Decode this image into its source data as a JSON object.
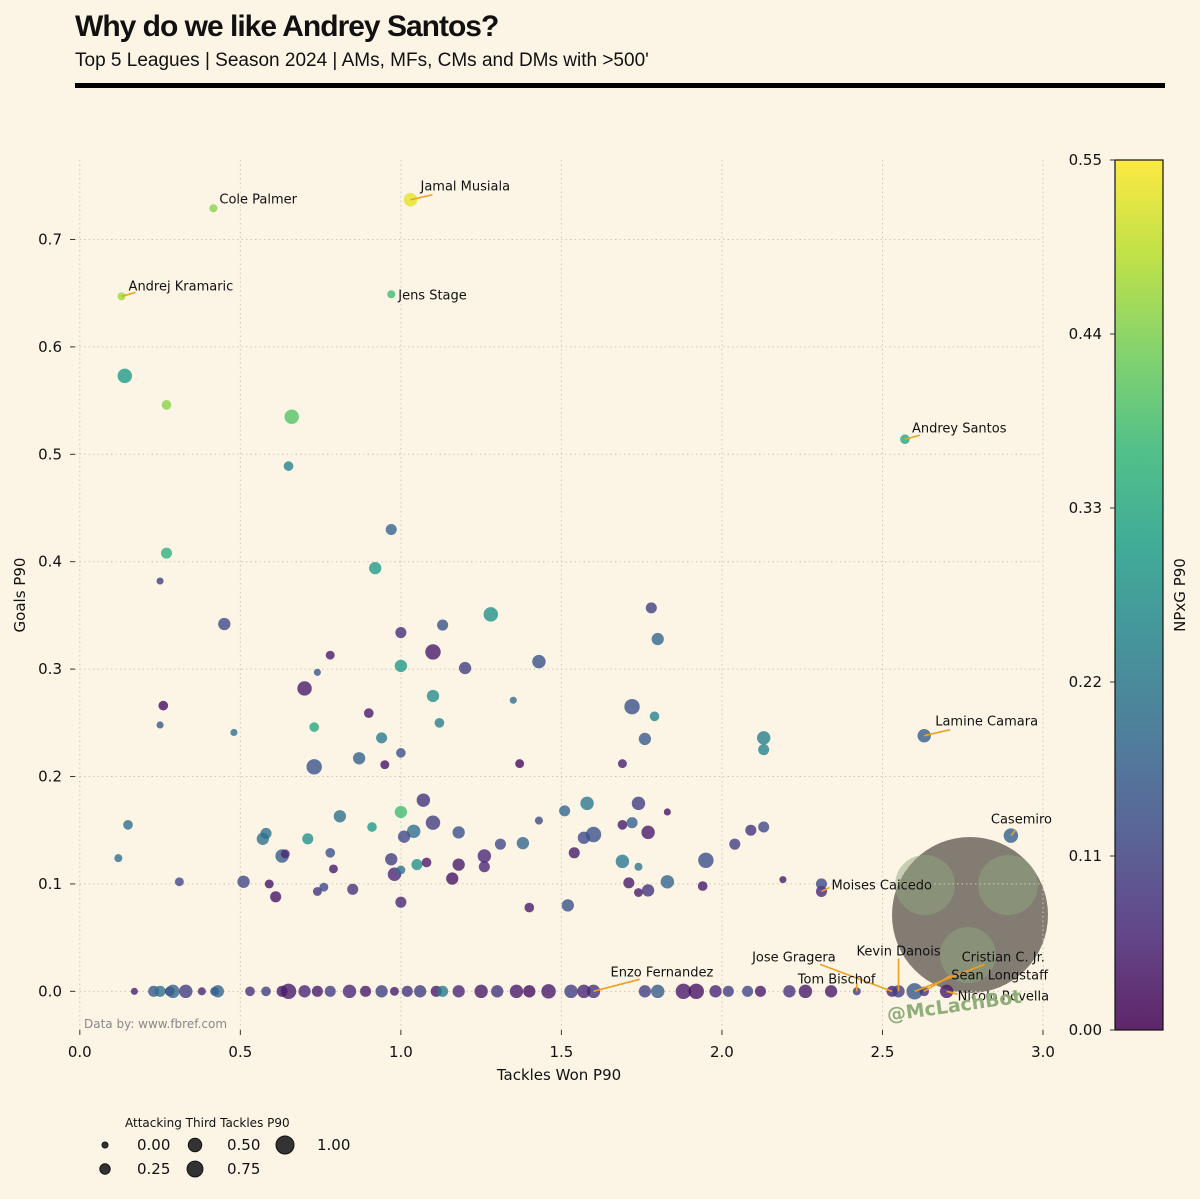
{
  "header": {
    "title": "Why do we like Andrey Santos?",
    "subtitle": "Top 5 Leagues | Season 2024 | AMs, MFs, CMs and DMs with >500'"
  },
  "chart_data": {
    "type": "scatter",
    "x_label": "Tackles Won P90",
    "y_label": "Goals P90",
    "xlim": [
      -0.015,
      3.0
    ],
    "ylim": [
      -0.036,
      0.774
    ],
    "xticks": [
      {
        "value": 0,
        "label": "0.0"
      },
      {
        "value": 0.5,
        "label": "0.5"
      },
      {
        "value": 1,
        "label": "1.0"
      },
      {
        "value": 1.5,
        "label": "1.5"
      },
      {
        "value": 2,
        "label": "2.0"
      },
      {
        "value": 2.5,
        "label": "2.5"
      },
      {
        "value": 3,
        "label": "3.0"
      }
    ],
    "yticks": [
      {
        "value": 0,
        "label": "0.0"
      },
      {
        "value": 0.1,
        "label": "0.1"
      },
      {
        "value": 0.2,
        "label": "0.2"
      },
      {
        "value": 0.3,
        "label": "0.3"
      },
      {
        "value": 0.4,
        "label": "0.4"
      },
      {
        "value": 0.5,
        "label": "0.5"
      },
      {
        "value": 0.6,
        "label": "0.6"
      },
      {
        "value": 0.7,
        "label": "0.7"
      }
    ],
    "grid": true,
    "colormap": "viridis",
    "color_label": "NPxG P90",
    "clim": [
      0,
      0.55
    ],
    "cticks": [
      {
        "value": 0,
        "label": "0.00"
      },
      {
        "value": 0.11,
        "label": "0.11"
      },
      {
        "value": 0.22,
        "label": "0.22"
      },
      {
        "value": 0.33,
        "label": "0.33"
      },
      {
        "value": 0.44,
        "label": "0.44"
      },
      {
        "value": 0.55,
        "label": "0.55"
      }
    ],
    "size_label": "Attacking Third Tackles P90",
    "size_ticks": [
      {
        "value": 0,
        "label": "0.00"
      },
      {
        "value": 0.25,
        "label": "0.25"
      },
      {
        "value": 0.5,
        "label": "0.50"
      },
      {
        "value": 0.75,
        "label": "0.75"
      },
      {
        "value": 1,
        "label": "1.00"
      }
    ],
    "source": "Data by: www.fbref.com",
    "watermark": "@McLachBot",
    "annotation_color": "#f0a020",
    "points": [
      {
        "x": 0.416,
        "y": 0.729,
        "size": 0.1,
        "npxg": 0.45,
        "label": "Cole Palmer"
      },
      {
        "x": 1.03,
        "y": 0.737,
        "size": 0.5,
        "npxg": 0.53,
        "label": "Jamal Musiala"
      },
      {
        "x": 0.13,
        "y": 0.647,
        "size": 0.1,
        "npxg": 0.47,
        "label": "Andrej Kramaric"
      },
      {
        "x": 0.97,
        "y": 0.649,
        "size": 0.1,
        "npxg": 0.38,
        "label": "Jens Stage"
      },
      {
        "x": 2.57,
        "y": 0.514,
        "size": 0.2,
        "npxg": 0.33,
        "label": "Andrey Santos"
      },
      {
        "x": 2.63,
        "y": 0.238,
        "size": 0.5,
        "npxg": 0.16,
        "label": "Lamine Camara"
      },
      {
        "x": 2.9,
        "y": 0.145,
        "size": 0.6,
        "npxg": 0.17,
        "label": "Casemiro"
      },
      {
        "x": 2.31,
        "y": 0.093,
        "size": 0.3,
        "npxg": 0.06,
        "label": "Moises Caicedo"
      },
      {
        "x": 1.6,
        "y": 0,
        "size": 0.5,
        "npxg": 0.08,
        "label": "Enzo Fernandez"
      },
      {
        "x": 2.53,
        "y": 0,
        "size": 0.3,
        "npxg": 0.05,
        "label": "Jose Gragera"
      },
      {
        "x": 2.42,
        "y": 0,
        "size": 0.1,
        "npxg": 0.1,
        "label": "Tom Bischof"
      },
      {
        "x": 2.55,
        "y": 0,
        "size": 0.4,
        "npxg": 0.1,
        "label": "Kevin Danois"
      },
      {
        "x": 2.6,
        "y": 0,
        "size": 0.8,
        "npxg": 0.15,
        "label": "Cristian C. Jr."
      },
      {
        "x": 2.63,
        "y": 0,
        "size": 0.2,
        "npxg": 0.08,
        "label": "Sean Longstaff"
      },
      {
        "x": 2.7,
        "y": 0,
        "size": 0.5,
        "npxg": 0.04,
        "label": "Nicolo Rovella"
      },
      {
        "x": 0.14,
        "y": 0.573,
        "size": 0.6,
        "npxg": 0.3
      },
      {
        "x": 0.27,
        "y": 0.546,
        "size": 0.2,
        "npxg": 0.45
      },
      {
        "x": 0.66,
        "y": 0.535,
        "size": 0.6,
        "npxg": 0.4
      },
      {
        "x": 0.65,
        "y": 0.489,
        "size": 0.2,
        "npxg": 0.25
      },
      {
        "x": 0.27,
        "y": 0.408,
        "size": 0.3,
        "npxg": 0.35
      },
      {
        "x": 0.25,
        "y": 0.382,
        "size": 0.05,
        "npxg": 0.1
      },
      {
        "x": 0.97,
        "y": 0.43,
        "size": 0.3,
        "npxg": 0.18
      },
      {
        "x": 0.92,
        "y": 0.394,
        "size": 0.4,
        "npxg": 0.3
      },
      {
        "x": 0.45,
        "y": 0.342,
        "size": 0.4,
        "npxg": 0.12
      },
      {
        "x": 1.28,
        "y": 0.351,
        "size": 0.6,
        "npxg": 0.28
      },
      {
        "x": 1.78,
        "y": 0.357,
        "size": 0.3,
        "npxg": 0.1
      },
      {
        "x": 1.13,
        "y": 0.341,
        "size": 0.3,
        "npxg": 0.14
      },
      {
        "x": 1.0,
        "y": 0.334,
        "size": 0.3,
        "npxg": 0.07
      },
      {
        "x": 1.1,
        "y": 0.316,
        "size": 0.7,
        "npxg": 0.04
      },
      {
        "x": 0.78,
        "y": 0.313,
        "size": 0.15,
        "npxg": 0.04
      },
      {
        "x": 1.0,
        "y": 0.303,
        "size": 0.4,
        "npxg": 0.3
      },
      {
        "x": 1.2,
        "y": 0.301,
        "size": 0.4,
        "npxg": 0.1
      },
      {
        "x": 1.43,
        "y": 0.307,
        "size": 0.5,
        "npxg": 0.14
      },
      {
        "x": 1.8,
        "y": 0.328,
        "size": 0.4,
        "npxg": 0.18
      },
      {
        "x": 0.7,
        "y": 0.282,
        "size": 0.6,
        "npxg": 0.04
      },
      {
        "x": 0.74,
        "y": 0.297,
        "size": 0.05,
        "npxg": 0.15
      },
      {
        "x": 1.1,
        "y": 0.275,
        "size": 0.4,
        "npxg": 0.27
      },
      {
        "x": 0.26,
        "y": 0.266,
        "size": 0.2,
        "npxg": 0.02
      },
      {
        "x": 0.25,
        "y": 0.248,
        "size": 0.05,
        "npxg": 0.15
      },
      {
        "x": 0.48,
        "y": 0.241,
        "size": 0.05,
        "npxg": 0.2
      },
      {
        "x": 0.73,
        "y": 0.246,
        "size": 0.2,
        "npxg": 0.33
      },
      {
        "x": 0.9,
        "y": 0.259,
        "size": 0.2,
        "npxg": 0.04
      },
      {
        "x": 1.12,
        "y": 0.25,
        "size": 0.2,
        "npxg": 0.24
      },
      {
        "x": 1.35,
        "y": 0.271,
        "size": 0.05,
        "npxg": 0.2
      },
      {
        "x": 1.72,
        "y": 0.265,
        "size": 0.7,
        "npxg": 0.14
      },
      {
        "x": 1.79,
        "y": 0.256,
        "size": 0.2,
        "npxg": 0.25
      },
      {
        "x": 1.76,
        "y": 0.235,
        "size": 0.4,
        "npxg": 0.16
      },
      {
        "x": 2.13,
        "y": 0.236,
        "size": 0.5,
        "npxg": 0.24
      },
      {
        "x": 2.13,
        "y": 0.225,
        "size": 0.3,
        "npxg": 0.25
      },
      {
        "x": 0.94,
        "y": 0.236,
        "size": 0.3,
        "npxg": 0.23
      },
      {
        "x": 1.0,
        "y": 0.222,
        "size": 0.2,
        "npxg": 0.14
      },
      {
        "x": 0.87,
        "y": 0.217,
        "size": 0.4,
        "npxg": 0.17
      },
      {
        "x": 0.73,
        "y": 0.209,
        "size": 0.7,
        "npxg": 0.14
      },
      {
        "x": 0.95,
        "y": 0.211,
        "size": 0.15,
        "npxg": 0.03
      },
      {
        "x": 1.37,
        "y": 0.212,
        "size": 0.15,
        "npxg": 0.02
      },
      {
        "x": 1.69,
        "y": 0.212,
        "size": 0.15,
        "npxg": 0.05
      },
      {
        "x": 0.15,
        "y": 0.155,
        "size": 0.2,
        "npxg": 0.2
      },
      {
        "x": 0.12,
        "y": 0.124,
        "size": 0.1,
        "npxg": 0.2
      },
      {
        "x": 0.31,
        "y": 0.102,
        "size": 0.15,
        "npxg": 0.12
      },
      {
        "x": 0.51,
        "y": 0.102,
        "size": 0.4,
        "npxg": 0.12
      },
      {
        "x": 0.57,
        "y": 0.142,
        "size": 0.4,
        "npxg": 0.2
      },
      {
        "x": 0.58,
        "y": 0.147,
        "size": 0.3,
        "npxg": 0.2
      },
      {
        "x": 0.63,
        "y": 0.126,
        "size": 0.5,
        "npxg": 0.16
      },
      {
        "x": 0.64,
        "y": 0.128,
        "size": 0.15,
        "npxg": 0.06
      },
      {
        "x": 0.59,
        "y": 0.1,
        "size": 0.15,
        "npxg": 0.03
      },
      {
        "x": 0.61,
        "y": 0.088,
        "size": 0.3,
        "npxg": 0.03
      },
      {
        "x": 0.71,
        "y": 0.142,
        "size": 0.3,
        "npxg": 0.28
      },
      {
        "x": 0.74,
        "y": 0.093,
        "size": 0.15,
        "npxg": 0.08
      },
      {
        "x": 0.76,
        "y": 0.097,
        "size": 0.15,
        "npxg": 0.12
      },
      {
        "x": 0.81,
        "y": 0.163,
        "size": 0.4,
        "npxg": 0.2
      },
      {
        "x": 0.78,
        "y": 0.129,
        "size": 0.2,
        "npxg": 0.14
      },
      {
        "x": 0.79,
        "y": 0.114,
        "size": 0.15,
        "npxg": 0.04
      },
      {
        "x": 0.85,
        "y": 0.095,
        "size": 0.3,
        "npxg": 0.08
      },
      {
        "x": 0.91,
        "y": 0.153,
        "size": 0.2,
        "npxg": 0.3
      },
      {
        "x": 1.0,
        "y": 0.167,
        "size": 0.4,
        "npxg": 0.38
      },
      {
        "x": 1.07,
        "y": 0.178,
        "size": 0.5,
        "npxg": 0.08
      },
      {
        "x": 1.04,
        "y": 0.149,
        "size": 0.5,
        "npxg": 0.2
      },
      {
        "x": 1.01,
        "y": 0.144,
        "size": 0.4,
        "npxg": 0.12
      },
      {
        "x": 0.97,
        "y": 0.123,
        "size": 0.4,
        "npxg": 0.1
      },
      {
        "x": 0.98,
        "y": 0.109,
        "size": 0.5,
        "npxg": 0.06
      },
      {
        "x": 1.0,
        "y": 0.113,
        "size": 0.15,
        "npxg": 0.2
      },
      {
        "x": 1.05,
        "y": 0.118,
        "size": 0.3,
        "npxg": 0.28
      },
      {
        "x": 1.08,
        "y": 0.12,
        "size": 0.2,
        "npxg": 0.04
      },
      {
        "x": 1.0,
        "y": 0.083,
        "size": 0.3,
        "npxg": 0.06
      },
      {
        "x": 1.1,
        "y": 0.157,
        "size": 0.6,
        "npxg": 0.1
      },
      {
        "x": 1.18,
        "y": 0.148,
        "size": 0.4,
        "npxg": 0.14
      },
      {
        "x": 1.18,
        "y": 0.118,
        "size": 0.4,
        "npxg": 0.04
      },
      {
        "x": 1.16,
        "y": 0.105,
        "size": 0.4,
        "npxg": 0.03
      },
      {
        "x": 1.26,
        "y": 0.126,
        "size": 0.5,
        "npxg": 0.06
      },
      {
        "x": 1.26,
        "y": 0.116,
        "size": 0.3,
        "npxg": 0.06
      },
      {
        "x": 1.31,
        "y": 0.137,
        "size": 0.3,
        "npxg": 0.12
      },
      {
        "x": 1.38,
        "y": 0.138,
        "size": 0.4,
        "npxg": 0.18
      },
      {
        "x": 1.43,
        "y": 0.159,
        "size": 0.1,
        "npxg": 0.12
      },
      {
        "x": 1.51,
        "y": 0.168,
        "size": 0.3,
        "npxg": 0.18
      },
      {
        "x": 1.4,
        "y": 0.078,
        "size": 0.2,
        "npxg": 0.04
      },
      {
        "x": 1.52,
        "y": 0.08,
        "size": 0.4,
        "npxg": 0.14
      },
      {
        "x": 1.58,
        "y": 0.175,
        "size": 0.5,
        "npxg": 0.22
      },
      {
        "x": 1.57,
        "y": 0.143,
        "size": 0.4,
        "npxg": 0.12
      },
      {
        "x": 1.6,
        "y": 0.146,
        "size": 0.7,
        "npxg": 0.14
      },
      {
        "x": 1.54,
        "y": 0.129,
        "size": 0.3,
        "npxg": 0.04
      },
      {
        "x": 1.69,
        "y": 0.155,
        "size": 0.2,
        "npxg": 0.04
      },
      {
        "x": 1.72,
        "y": 0.157,
        "size": 0.3,
        "npxg": 0.17
      },
      {
        "x": 1.74,
        "y": 0.175,
        "size": 0.5,
        "npxg": 0.1
      },
      {
        "x": 1.77,
        "y": 0.148,
        "size": 0.5,
        "npxg": 0.04
      },
      {
        "x": 1.69,
        "y": 0.121,
        "size": 0.5,
        "npxg": 0.22
      },
      {
        "x": 1.74,
        "y": 0.116,
        "size": 0.1,
        "npxg": 0.22
      },
      {
        "x": 1.71,
        "y": 0.101,
        "size": 0.3,
        "npxg": 0.04
      },
      {
        "x": 1.74,
        "y": 0.092,
        "size": 0.15,
        "npxg": 0.04
      },
      {
        "x": 1.77,
        "y": 0.094,
        "size": 0.4,
        "npxg": 0.08
      },
      {
        "x": 1.83,
        "y": 0.102,
        "size": 0.5,
        "npxg": 0.18
      },
      {
        "x": 1.83,
        "y": 0.167,
        "size": 0.05,
        "npxg": 0.03
      },
      {
        "x": 1.95,
        "y": 0.122,
        "size": 0.7,
        "npxg": 0.13
      },
      {
        "x": 1.94,
        "y": 0.098,
        "size": 0.2,
        "npxg": 0.04
      },
      {
        "x": 2.04,
        "y": 0.137,
        "size": 0.3,
        "npxg": 0.1
      },
      {
        "x": 2.09,
        "y": 0.15,
        "size": 0.3,
        "npxg": 0.08
      },
      {
        "x": 2.13,
        "y": 0.153,
        "size": 0.3,
        "npxg": 0.12
      },
      {
        "x": 2.19,
        "y": 0.104,
        "size": 0.05,
        "npxg": 0.04
      },
      {
        "x": 2.31,
        "y": 0.1,
        "size": 0.3,
        "npxg": 0.12
      },
      {
        "x": 0.17,
        "y": 0,
        "size": 0.05,
        "npxg": 0.05
      },
      {
        "x": 0.23,
        "y": 0,
        "size": 0.3,
        "npxg": 0.15
      },
      {
        "x": 0.25,
        "y": 0,
        "size": 0.3,
        "npxg": 0.2
      },
      {
        "x": 0.28,
        "y": 0,
        "size": 0.2,
        "npxg": 0.05
      },
      {
        "x": 0.29,
        "y": 0,
        "size": 0.5,
        "npxg": 0.18
      },
      {
        "x": 0.33,
        "y": 0,
        "size": 0.5,
        "npxg": 0.1
      },
      {
        "x": 0.38,
        "y": 0,
        "size": 0.1,
        "npxg": 0.06
      },
      {
        "x": 0.42,
        "y": 0,
        "size": 0.15,
        "npxg": 0.12
      },
      {
        "x": 0.43,
        "y": 0,
        "size": 0.4,
        "npxg": 0.18
      },
      {
        "x": 0.53,
        "y": 0,
        "size": 0.2,
        "npxg": 0.08
      },
      {
        "x": 0.58,
        "y": 0,
        "size": 0.2,
        "npxg": 0.1
      },
      {
        "x": 0.63,
        "y": 0,
        "size": 0.3,
        "npxg": 0.04
      },
      {
        "x": 0.65,
        "y": 0,
        "size": 0.7,
        "npxg": 0.04
      },
      {
        "x": 0.7,
        "y": 0,
        "size": 0.4,
        "npxg": 0.06
      },
      {
        "x": 0.74,
        "y": 0,
        "size": 0.3,
        "npxg": 0.04
      },
      {
        "x": 0.78,
        "y": 0,
        "size": 0.3,
        "npxg": 0.1
      },
      {
        "x": 0.84,
        "y": 0,
        "size": 0.5,
        "npxg": 0.06
      },
      {
        "x": 0.89,
        "y": 0,
        "size": 0.3,
        "npxg": 0.04
      },
      {
        "x": 0.94,
        "y": 0,
        "size": 0.4,
        "npxg": 0.1
      },
      {
        "x": 0.98,
        "y": 0,
        "size": 0.15,
        "npxg": 0.04
      },
      {
        "x": 1.02,
        "y": 0,
        "size": 0.3,
        "npxg": 0.08
      },
      {
        "x": 1.06,
        "y": 0,
        "size": 0.4,
        "npxg": 0.1
      },
      {
        "x": 1.11,
        "y": 0,
        "size": 0.3,
        "npxg": 0.04
      },
      {
        "x": 1.13,
        "y": 0,
        "size": 0.3,
        "npxg": 0.22
      },
      {
        "x": 1.18,
        "y": 0,
        "size": 0.4,
        "npxg": 0.06
      },
      {
        "x": 1.25,
        "y": 0,
        "size": 0.5,
        "npxg": 0.04
      },
      {
        "x": 1.3,
        "y": 0,
        "size": 0.4,
        "npxg": 0.08
      },
      {
        "x": 1.36,
        "y": 0,
        "size": 0.5,
        "npxg": 0.04
      },
      {
        "x": 1.4,
        "y": 0,
        "size": 0.4,
        "npxg": 0.02
      },
      {
        "x": 1.46,
        "y": 0,
        "size": 0.6,
        "npxg": 0.04
      },
      {
        "x": 1.53,
        "y": 0,
        "size": 0.5,
        "npxg": 0.1
      },
      {
        "x": 1.57,
        "y": 0,
        "size": 0.5,
        "npxg": 0.06
      },
      {
        "x": 1.76,
        "y": 0,
        "size": 0.4,
        "npxg": 0.1
      },
      {
        "x": 1.8,
        "y": 0,
        "size": 0.5,
        "npxg": 0.16
      },
      {
        "x": 1.88,
        "y": 0,
        "size": 0.7,
        "npxg": 0.04
      },
      {
        "x": 1.92,
        "y": 0,
        "size": 0.7,
        "npxg": 0.03
      },
      {
        "x": 1.98,
        "y": 0,
        "size": 0.4,
        "npxg": 0.06
      },
      {
        "x": 2.02,
        "y": 0,
        "size": 0.3,
        "npxg": 0.1
      },
      {
        "x": 2.08,
        "y": 0,
        "size": 0.3,
        "npxg": 0.12
      },
      {
        "x": 2.12,
        "y": 0,
        "size": 0.3,
        "npxg": 0.04
      },
      {
        "x": 2.21,
        "y": 0,
        "size": 0.4,
        "npxg": 0.08
      },
      {
        "x": 2.26,
        "y": 0,
        "size": 0.5,
        "npxg": 0.04
      },
      {
        "x": 2.34,
        "y": 0,
        "size": 0.4,
        "npxg": 0.04
      }
    ]
  }
}
